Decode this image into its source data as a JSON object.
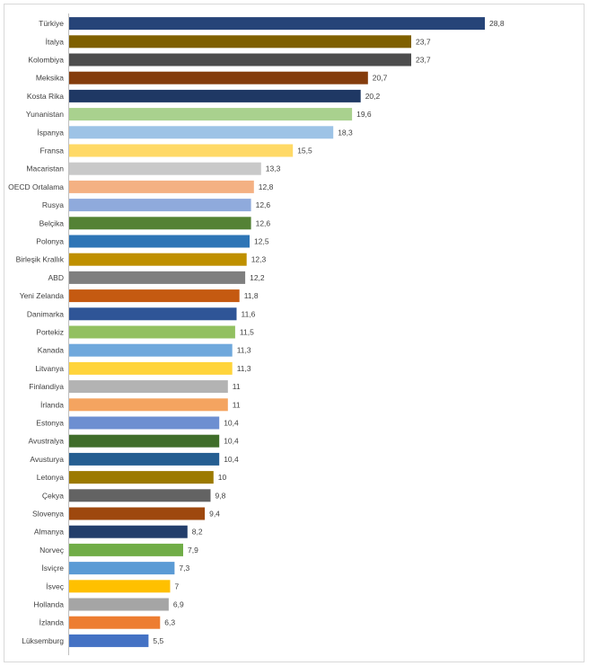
{
  "chart_data": {
    "type": "bar",
    "orientation": "horizontal",
    "title": "",
    "xlabel": "",
    "ylabel": "",
    "grid": false,
    "legend": "none",
    "categories": [
      "Türkiye",
      "İtalya",
      "Kolombiya",
      "Meksika",
      "Kosta Rika",
      "Yunanistan",
      "İspanya",
      "Fransa",
      "Macaristan",
      "OECD Ortalama",
      "Rusya",
      "Belçika",
      "Polonya",
      "Birleşik Krallık",
      "ABD",
      "Yeni Zelanda",
      "Danimarka",
      "Portekiz",
      "Kanada",
      "Litvanya",
      "Finlandiya",
      "İrlanda",
      "Estonya",
      "Avustralya",
      "Avusturya",
      "Letonya",
      "Çekya",
      "Slovenya",
      "Almanya",
      "Norveç",
      "İsviçre",
      "İsveç",
      "Hollanda",
      "İzlanda",
      "Lüksemburg"
    ],
    "values": [
      28.8,
      23.7,
      23.7,
      20.7,
      20.2,
      19.6,
      18.3,
      15.5,
      13.3,
      12.8,
      12.6,
      12.6,
      12.5,
      12.3,
      12.2,
      11.8,
      11.6,
      11.5,
      11.3,
      11.3,
      11,
      11,
      10.4,
      10.4,
      10.4,
      10,
      9.8,
      9.4,
      8.2,
      7.9,
      7.3,
      7,
      6.9,
      6.3,
      5.5
    ],
    "value_labels": [
      "28,8",
      "23,7",
      "23,7",
      "20,7",
      "20,2",
      "19,6",
      "18,3",
      "15,5",
      "13,3",
      "12,8",
      "12,6",
      "12,6",
      "12,5",
      "12,3",
      "12,2",
      "11,8",
      "11,6",
      "11,5",
      "11,3",
      "11,3",
      "11",
      "11",
      "10,4",
      "10,4",
      "10,4",
      "10",
      "9,8",
      "9,4",
      "8,2",
      "7,9",
      "7,3",
      "7",
      "6,9",
      "6,3",
      "5,5"
    ],
    "colors": [
      "#264478",
      "#7f6000",
      "#4d4d4d",
      "#843c0c",
      "#1f3864",
      "#a9d18e",
      "#9dc3e6",
      "#ffd966",
      "#c9c9c9",
      "#f4b183",
      "#8faadc",
      "#548235",
      "#2e75b6",
      "#bf9000",
      "#7f7f7f",
      "#c55a11",
      "#2f5597",
      "#92c060",
      "#6fa8dc",
      "#ffd43b",
      "#b3b3b3",
      "#f4a460",
      "#6d8fd1",
      "#3f6d2a",
      "#255e91",
      "#9c7a00",
      "#636363",
      "#9e480e",
      "#233e6b",
      "#70ad47",
      "#5b9bd5",
      "#ffc000",
      "#a5a5a5",
      "#ed7d31",
      "#4472c4"
    ],
    "xlim": [
      0,
      28.8
    ]
  }
}
